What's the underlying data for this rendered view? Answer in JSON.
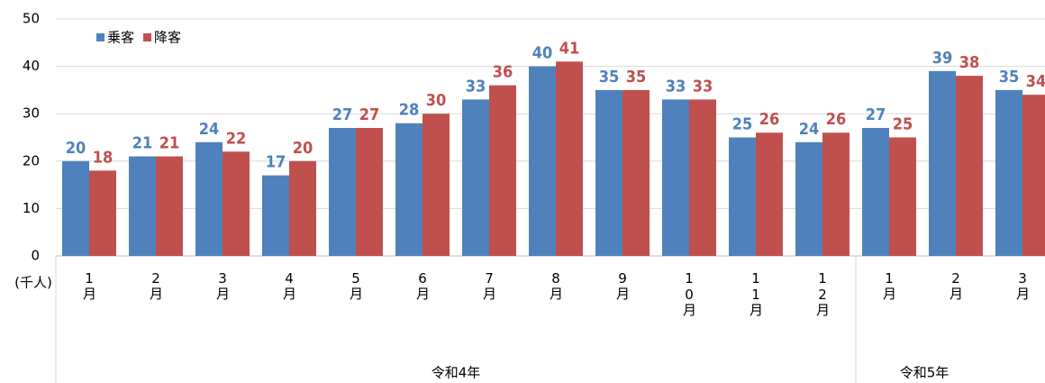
{
  "chart_data": {
    "type": "bar",
    "y_label": "(千人)",
    "categories": [
      "1月",
      "2月",
      "3月",
      "4月",
      "5月",
      "6月",
      "7月",
      "8月",
      "9月",
      "10月",
      "11月",
      "12月",
      "1月",
      "2月",
      "3月"
    ],
    "groups": [
      {
        "name": "令和4年",
        "count": 12
      },
      {
        "name": "令和5年",
        "count": 3
      }
    ],
    "series": [
      {
        "name": "乗客",
        "color": "#4f81bd",
        "values": [
          20,
          21,
          24,
          17,
          27,
          28,
          33,
          40,
          35,
          33,
          25,
          24,
          27,
          39,
          35
        ]
      },
      {
        "name": "降客",
        "color": "#c0504d",
        "values": [
          18,
          21,
          22,
          20,
          27,
          30,
          36,
          41,
          35,
          33,
          26,
          26,
          25,
          38,
          34
        ]
      }
    ],
    "ylim": [
      0,
      50
    ],
    "yticks": [
      0,
      10,
      20,
      30,
      40,
      50
    ],
    "grid": true,
    "legend": "top-left"
  }
}
